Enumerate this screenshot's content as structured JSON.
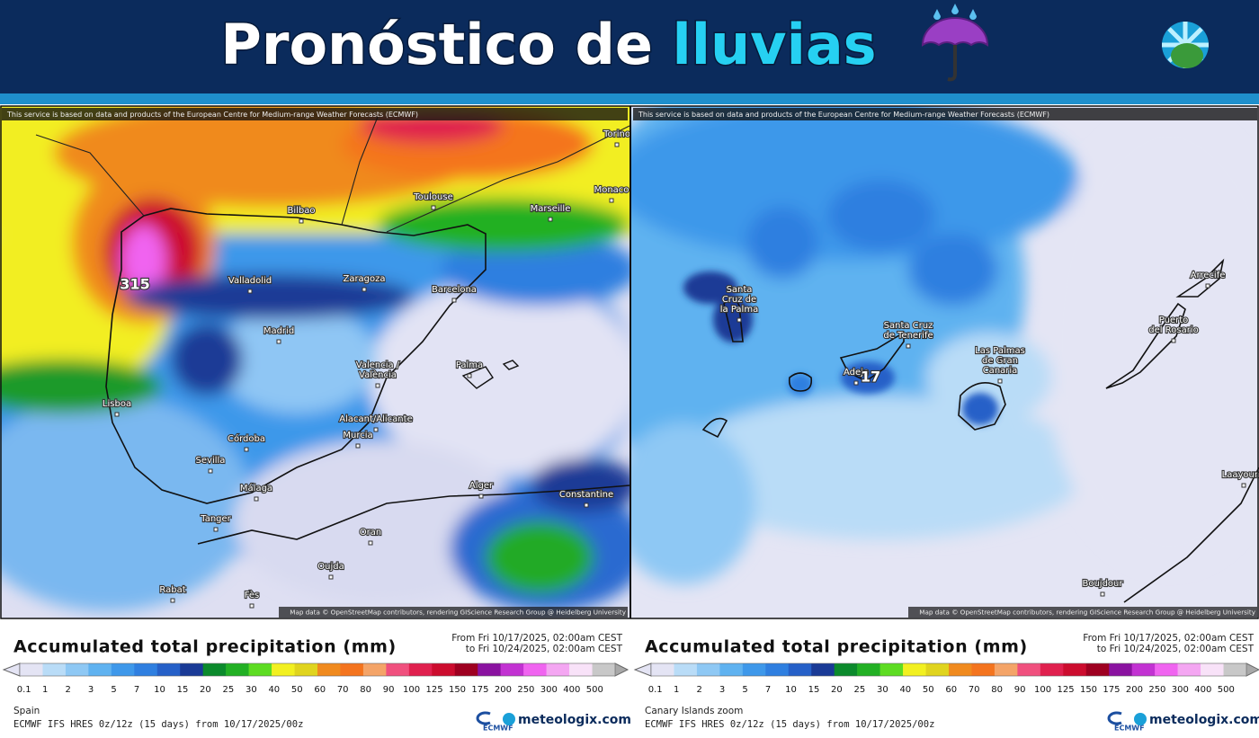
{
  "header": {
    "title": "Pronóstico de",
    "highlight": "lluvias"
  },
  "panels": [
    {
      "attribution": "This service is based on data and products of the European Centre for Medium-range Weather Forecasts (ECMWF)",
      "map_credit": "Map data © OpenStreetMap contributors, rendering GIScience Research Group @ Heidelberg University",
      "max_label": "315",
      "cities": [
        [
          "Toulouse"
        ],
        [
          "Marseille"
        ],
        [
          "Bilbao"
        ],
        [
          "Valladolid"
        ],
        [
          "Zaragoza"
        ],
        [
          "Barcelona"
        ],
        [
          "Madrid"
        ],
        [
          "Valencia /",
          "València"
        ],
        [
          "Palma"
        ],
        [
          "Lisboa"
        ],
        [
          "Alacant/Alicante"
        ],
        [
          "Murcia"
        ],
        [
          "Córdoba"
        ],
        [
          "Sevilla"
        ],
        [
          "Málaga"
        ],
        [
          "Tanger"
        ],
        [
          "Alger"
        ],
        [
          "Constantine"
        ],
        [
          "Oran"
        ],
        [
          "Oujda"
        ],
        [
          "Rabat"
        ],
        [
          "Fès"
        ],
        [
          "Monaco"
        ],
        [
          "Torino"
        ]
      ],
      "legend_title": "Accumulated total precipitation (mm)",
      "from": "From Fri 10/17/2025, 02:00am CEST",
      "to": "to Fri 10/24/2025, 02:00am CEST",
      "region": "Spain",
      "model": "ECMWF IFS HRES 0z/12z (15 days) from 10/17/2025/00z"
    },
    {
      "attribution": "This service is based on data and products of the European Centre for Medium-range Weather Forecasts (ECMWF)",
      "map_credit": "Map data © OpenStreetMap contributors, rendering GIScience Research Group @ Heidelberg University",
      "max_label": "17",
      "cities": [
        [
          "Santa",
          "Cruz de",
          "la Palma"
        ],
        [
          "Santa Cruz",
          "de Tenerife"
        ],
        [
          "Las Palmas",
          "de Gran",
          "Canaria"
        ],
        [
          "Puerto",
          "del Rosario"
        ],
        [
          "Arrecife"
        ],
        [
          "Adeje"
        ],
        [
          "Laayoune"
        ],
        [
          "Boujdour"
        ]
      ],
      "legend_title": "Accumulated total precipitation (mm)",
      "from": "From Fri 10/17/2025, 02:00am CEST",
      "to": "to Fri 10/24/2025, 02:00am CEST",
      "region": "Canary Islands zoom",
      "model": "ECMWF IFS HRES 0z/12z (15 days) from 10/17/2025/00z"
    }
  ],
  "legend": {
    "ticks": [
      "0.1",
      "1",
      "2",
      "3",
      "5",
      "7",
      "10",
      "15",
      "20",
      "25",
      "30",
      "40",
      "50",
      "60",
      "70",
      "80",
      "90",
      "100",
      "125",
      "150",
      "175",
      "200",
      "250",
      "300",
      "400",
      "500"
    ],
    "colors": [
      "#e4e4f4",
      "#b9dcf7",
      "#8ec8f4",
      "#5fb2f0",
      "#3e98ea",
      "#2f7fe0",
      "#2660c8",
      "#1a3a96",
      "#0b8a2c",
      "#22b024",
      "#5ddc22",
      "#f2f020",
      "#e0d41e",
      "#f08a1e",
      "#f4741e",
      "#f4a468",
      "#f0507e",
      "#e0204e",
      "#cc0c2e",
      "#9e0020",
      "#8a12a0",
      "#c232d2",
      "#f064f0",
      "#f4a6f2",
      "#f8e2f8",
      "#c8c8c8"
    ]
  },
  "logos": {
    "ecmwf": "ECMWF",
    "brand": "meteologix.com"
  }
}
